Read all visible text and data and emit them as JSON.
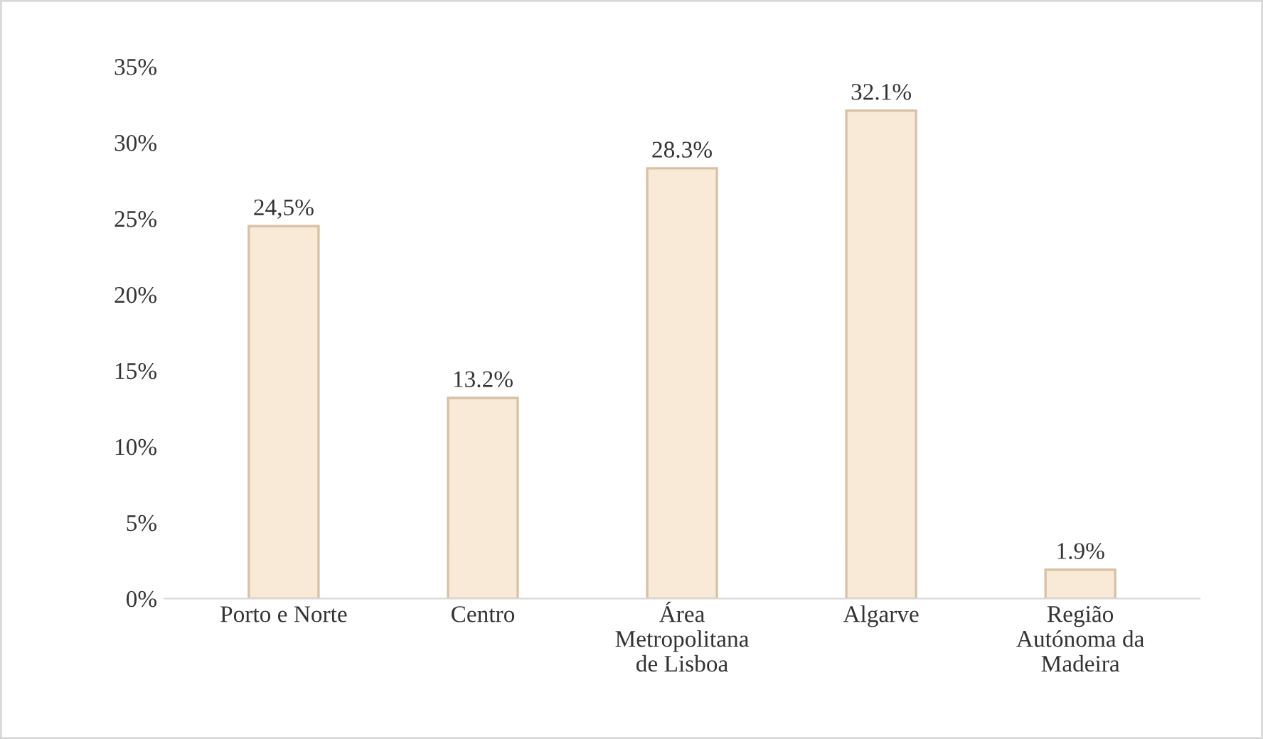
{
  "chart_data": {
    "type": "bar",
    "categories": [
      "Porto e Norte",
      "Centro",
      "Área\nMetropolitana\nde Lisboa",
      "Algarve",
      "Região\nAutónoma da\nMadeira"
    ],
    "values": [
      24.5,
      13.2,
      28.3,
      32.1,
      1.9
    ],
    "value_labels": [
      "24,5%",
      "13.2%",
      "28.3%",
      "32.1%",
      "1.9%"
    ],
    "color": "#f8ead6",
    "ylim": [
      0,
      35
    ],
    "yticks": [
      {
        "value": 0,
        "label": "0%"
      },
      {
        "value": 5,
        "label": "5%"
      },
      {
        "value": 10,
        "label": "10%"
      },
      {
        "value": 15,
        "label": "15%"
      },
      {
        "value": 20,
        "label": "20%"
      },
      {
        "value": 25,
        "label": "25%"
      },
      {
        "value": 30,
        "label": "30%"
      },
      {
        "value": 35,
        "label": "35%"
      }
    ],
    "grid": false,
    "legend": false
  }
}
